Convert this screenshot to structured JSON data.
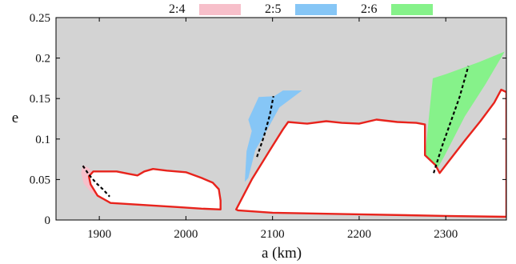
{
  "chart_data": {
    "type": "area",
    "title": "",
    "xlabel": "a (km)",
    "ylabel": "e",
    "xlim": [
      1850,
      2370
    ],
    "ylim": [
      0,
      0.25
    ],
    "x_ticks": [
      1900,
      2000,
      2100,
      2200,
      2300
    ],
    "x_tick_labels": [
      "1900",
      "2000",
      "2100",
      "2200",
      "2300"
    ],
    "y_ticks": [
      0,
      0.05,
      0.1,
      0.15,
      0.2,
      0.25
    ],
    "y_tick_labels": [
      "0",
      "0.05",
      "0.1",
      "0.15",
      "0.2",
      "0.25"
    ],
    "grid": false,
    "legend_position": "top",
    "background_color": "#d3d3d3",
    "boundary_color": "#e8231c",
    "center_line_color": "#000000",
    "series": [
      {
        "name": "2:4",
        "color": "#f7bfca",
        "region": [
          [
            1881,
            0.068
          ],
          [
            1888,
            0.064
          ],
          [
            1898,
            0.052
          ],
          [
            1908,
            0.042
          ],
          [
            1916,
            0.033
          ],
          [
            1925,
            0.023
          ],
          [
            1912,
            0.022
          ],
          [
            1900,
            0.027
          ],
          [
            1890,
            0.035
          ],
          [
            1882,
            0.045
          ],
          [
            1879,
            0.058
          ]
        ],
        "center": [
          [
            1881,
            0.067
          ],
          [
            1888,
            0.056
          ],
          [
            1896,
            0.046
          ],
          [
            1904,
            0.038
          ],
          [
            1912,
            0.029
          ]
        ]
      },
      {
        "name": "2:5",
        "color": "#86c6f6",
        "region": [
          [
            2068,
            0.047
          ],
          [
            2070,
            0.085
          ],
          [
            2076,
            0.11
          ],
          [
            2072,
            0.124
          ],
          [
            2084,
            0.152
          ],
          [
            2102,
            0.153
          ],
          [
            2112,
            0.16
          ],
          [
            2134,
            0.16
          ],
          [
            2108,
            0.139
          ],
          [
            2094,
            0.112
          ],
          [
            2080,
            0.086
          ],
          [
            2072,
            0.052
          ]
        ],
        "center": [
          [
            2082,
            0.078
          ],
          [
            2090,
            0.103
          ],
          [
            2097,
            0.13
          ],
          [
            2101,
            0.153
          ]
        ]
      },
      {
        "name": "2:6",
        "color": "#86f28a",
        "region": [
          [
            2272,
            0.036
          ],
          [
            2285,
            0.175
          ],
          [
            2300,
            0.18
          ],
          [
            2338,
            0.195
          ],
          [
            2368,
            0.208
          ],
          [
            2346,
            0.168
          ],
          [
            2322,
            0.128
          ],
          [
            2298,
            0.078
          ],
          [
            2284,
            0.052
          ],
          [
            2282,
            0.036
          ],
          [
            2278,
            0.018
          ]
        ],
        "center": [
          [
            2286,
            0.058
          ],
          [
            2296,
            0.092
          ],
          [
            2306,
            0.122
          ],
          [
            2316,
            0.152
          ],
          [
            2326,
            0.19
          ]
        ]
      }
    ],
    "stable_regions": [
      {
        "name": "",
        "boundary": [
          [
            1888,
            0.054
          ],
          [
            1893,
            0.06
          ],
          [
            1920,
            0.06
          ],
          [
            1934,
            0.057
          ],
          [
            1944,
            0.055
          ],
          [
            1952,
            0.06
          ],
          [
            1962,
            0.063
          ],
          [
            1978,
            0.061
          ],
          [
            2000,
            0.059
          ],
          [
            2018,
            0.052
          ],
          [
            2031,
            0.046
          ],
          [
            2038,
            0.038
          ],
          [
            2040,
            0.024
          ],
          [
            2040,
            0.013
          ],
          [
            2018,
            0.014
          ],
          [
            1990,
            0.016
          ],
          [
            1960,
            0.018
          ],
          [
            1930,
            0.02
          ],
          [
            1913,
            0.021
          ],
          [
            1898,
            0.03
          ],
          [
            1890,
            0.044
          ]
        ]
      },
      {
        "name": "",
        "boundary": [
          [
            2058,
            0.013
          ],
          [
            2076,
            0.05
          ],
          [
            2098,
            0.088
          ],
          [
            2112,
            0.112
          ],
          [
            2118,
            0.121
          ],
          [
            2140,
            0.119
          ],
          [
            2162,
            0.122
          ],
          [
            2180,
            0.12
          ],
          [
            2200,
            0.119
          ],
          [
            2220,
            0.124
          ],
          [
            2244,
            0.121
          ],
          [
            2266,
            0.12
          ],
          [
            2276,
            0.118
          ],
          [
            2276,
            0.08
          ],
          [
            2288,
            0.068
          ],
          [
            2293,
            0.058
          ],
          [
            2303,
            0.072
          ],
          [
            2322,
            0.098
          ],
          [
            2340,
            0.122
          ],
          [
            2356,
            0.145
          ],
          [
            2364,
            0.161
          ],
          [
            2370,
            0.158
          ],
          [
            2370,
            0.004
          ],
          [
            2300,
            0.005
          ],
          [
            2200,
            0.007
          ],
          [
            2100,
            0.009
          ],
          [
            2060,
            0.012
          ]
        ]
      }
    ]
  }
}
